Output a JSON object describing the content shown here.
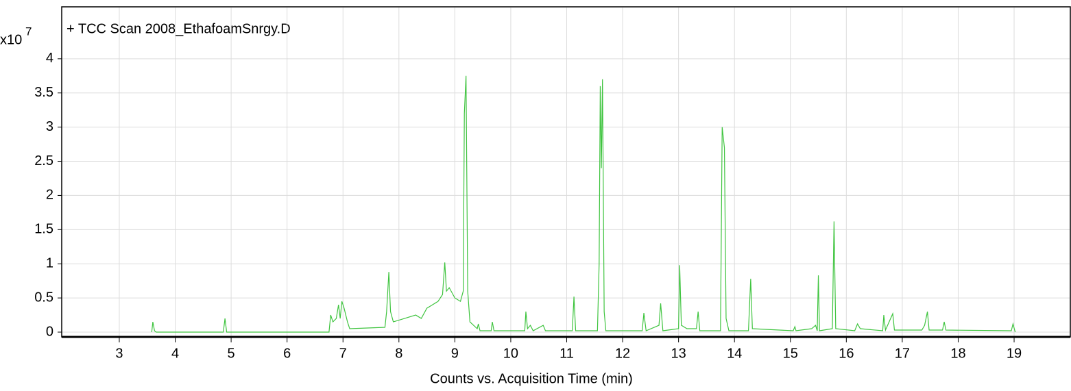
{
  "chart_data": {
    "type": "line",
    "title": "+ TCC Scan 2008_EthafoamSnrgy.D",
    "y_multiplier": "x10",
    "y_exponent": "7",
    "xlabel": "Counts vs. Acquisition Time (min)",
    "xlim": [
      2,
      20
    ],
    "ylim": [
      -0.07,
      4.76
    ],
    "xticks": [
      3,
      4,
      5,
      6,
      7,
      8,
      9,
      10,
      11,
      12,
      13,
      14,
      15,
      16,
      17,
      18,
      19
    ],
    "yticks": [
      0,
      0.5,
      1,
      1.5,
      2,
      2.5,
      3,
      3.5,
      4
    ],
    "grid": true,
    "color": "#3fc43f",
    "x": [
      3.58,
      3.6,
      3.63,
      3.66,
      4.86,
      4.89,
      4.92,
      6.75,
      6.78,
      6.82,
      6.88,
      6.92,
      6.95,
      6.98,
      7.02,
      7.08,
      7.12,
      7.75,
      7.78,
      7.82,
      7.85,
      7.9,
      8.1,
      8.3,
      8.4,
      8.5,
      8.6,
      8.7,
      8.78,
      8.82,
      8.85,
      8.9,
      9.0,
      9.1,
      9.15,
      9.17,
      9.2,
      9.23,
      9.27,
      9.4,
      9.42,
      9.45,
      9.65,
      9.67,
      9.7,
      10.25,
      10.27,
      10.3,
      10.35,
      10.4,
      10.58,
      10.62,
      11.1,
      11.13,
      11.16,
      11.55,
      11.58,
      11.6,
      11.62,
      11.64,
      11.67,
      11.7,
      12.35,
      12.38,
      12.42,
      12.65,
      12.68,
      12.72,
      13.0,
      13.02,
      13.05,
      13.15,
      13.32,
      13.35,
      13.38,
      13.75,
      13.78,
      13.82,
      13.85,
      13.9,
      14.25,
      14.29,
      14.32,
      15.05,
      15.08,
      15.1,
      15.38,
      15.45,
      15.48,
      15.5,
      15.52,
      15.75,
      15.78,
      15.81,
      16.15,
      16.2,
      16.25,
      16.65,
      16.67,
      16.7,
      16.83,
      16.86,
      17.35,
      17.4,
      17.45,
      17.48,
      17.72,
      17.75,
      17.78,
      18.95,
      18.98,
      19.02
    ],
    "values": [
      0,
      0.15,
      0.02,
      0,
      0,
      0.2,
      0,
      0,
      0.25,
      0.15,
      0.2,
      0.4,
      0.2,
      0.45,
      0.35,
      0.15,
      0.05,
      0.07,
      0.3,
      0.88,
      0.3,
      0.15,
      0.2,
      0.25,
      0.2,
      0.35,
      0.4,
      0.45,
      0.55,
      1.02,
      0.6,
      0.65,
      0.5,
      0.45,
      0.6,
      3.2,
      3.75,
      0.6,
      0.15,
      0.05,
      0.12,
      0.02,
      0.02,
      0.15,
      0.02,
      0.02,
      0.3,
      0.05,
      0.1,
      0.02,
      0.1,
      0.02,
      0.02,
      0.52,
      0.02,
      0.02,
      1.0,
      3.6,
      2.4,
      3.7,
      0.3,
      0.02,
      0.02,
      0.28,
      0.02,
      0.1,
      0.42,
      0.02,
      0.05,
      0.98,
      0.1,
      0.05,
      0.05,
      0.3,
      0.02,
      0.02,
      3.0,
      2.7,
      0.2,
      0.02,
      0.02,
      0.78,
      0.05,
      0.02,
      0.08,
      0.02,
      0.05,
      0.1,
      0.02,
      0.83,
      0.02,
      0.05,
      1.62,
      0.05,
      0.02,
      0.12,
      0.05,
      0.02,
      0.25,
      0.03,
      0.27,
      0.03,
      0.03,
      0.1,
      0.3,
      0.03,
      0.03,
      0.15,
      0.03,
      0.02,
      0.12,
      0
    ]
  }
}
